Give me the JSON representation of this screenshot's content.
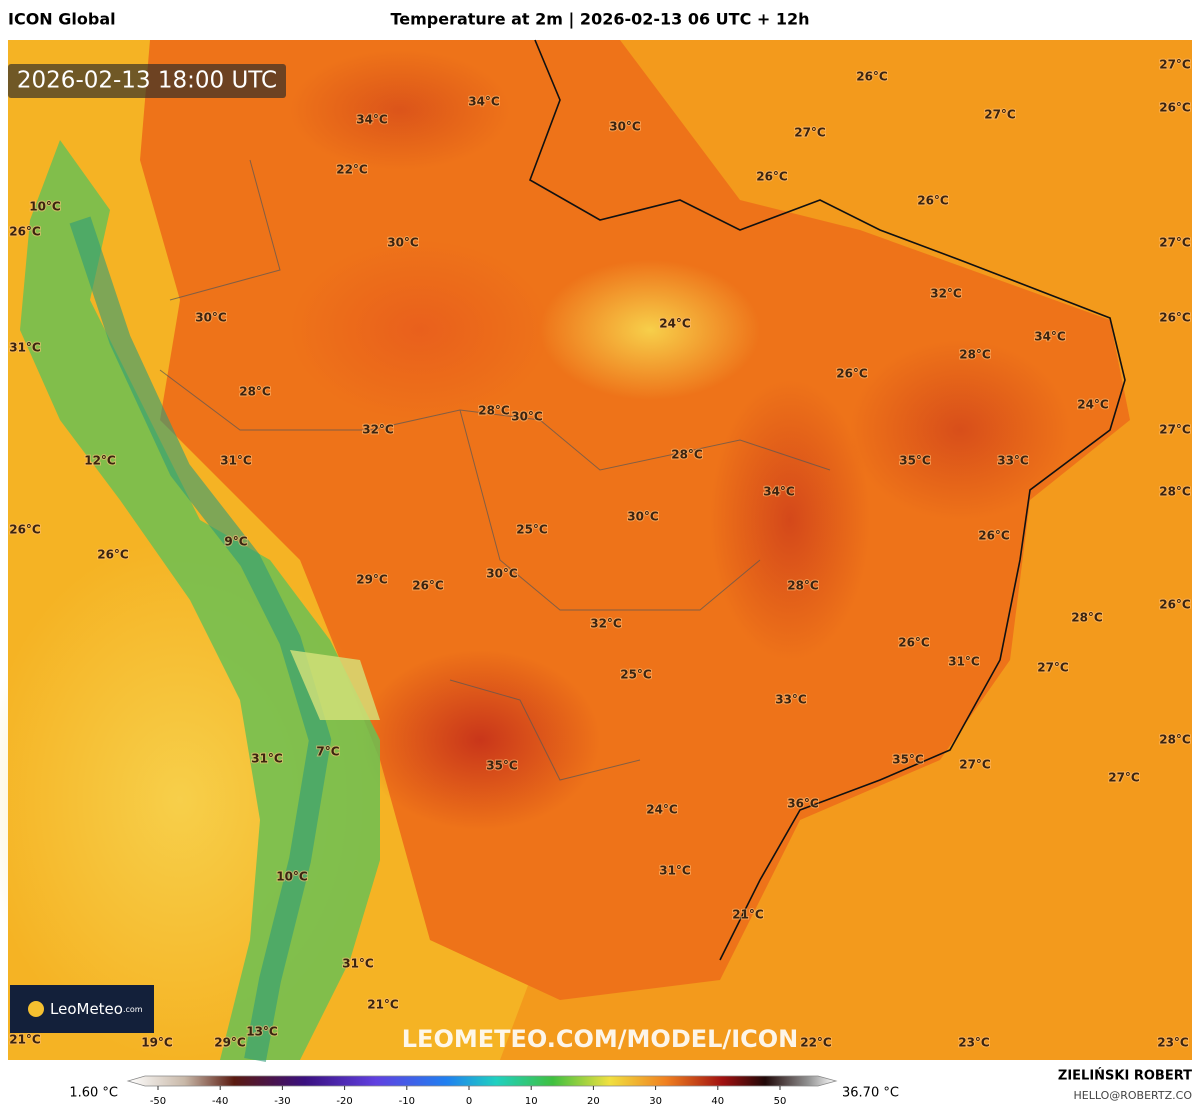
{
  "header": {
    "model": "ICON Global",
    "title": "Temperature at 2m | 2026-02-13 06 UTC + 12h"
  },
  "map": {
    "timestamp": "2026-02-13 18:00 UTC",
    "logo": {
      "name": "LeoMeteo",
      "suffix": ".com"
    },
    "watermark": "LEOMETEO.COM/MODEL/ICON",
    "labels": [
      "26°C",
      "27°C",
      "26°C",
      "34°C",
      "34°C",
      "30°C",
      "27°C",
      "27°C",
      "22°C",
      "26°C",
      "26°C",
      "10°C",
      "26°C",
      "30°C",
      "27°C",
      "32°C",
      "30°C",
      "24°C",
      "34°C",
      "26°C",
      "31°C",
      "28°C",
      "26°C",
      "28°C",
      "24°C",
      "28°C",
      "30°C",
      "32°C",
      "27°C",
      "12°C",
      "31°C",
      "28°C",
      "35°C",
      "33°C",
      "34°C",
      "28°C",
      "30°C",
      "25°C",
      "26°C",
      "9°C",
      "26°C",
      "26°C",
      "30°C",
      "29°C",
      "26°C",
      "28°C",
      "26°C",
      "28°C",
      "32°C",
      "26°C",
      "31°C",
      "27°C",
      "25°C",
      "33°C",
      "28°C",
      "7°C",
      "31°C",
      "35°C",
      "35°C",
      "27°C",
      "27°C",
      "36°C",
      "24°C",
      "31°C",
      "10°C",
      "21°C",
      "31°C",
      "21°C",
      "13°C",
      "21°C",
      "19°C",
      "29°C",
      "22°C",
      "23°C",
      "23°C"
    ]
  },
  "legend": {
    "min": "1.60 °C",
    "max": "36.70 °C",
    "ticks": [
      -50,
      -40,
      -30,
      -20,
      -10,
      0,
      10,
      20,
      30,
      40,
      50
    ]
  },
  "footer": {
    "author": "ZIELIŃSKI ROBERT",
    "email": "HELLO@ROBERTZ.CO"
  }
}
